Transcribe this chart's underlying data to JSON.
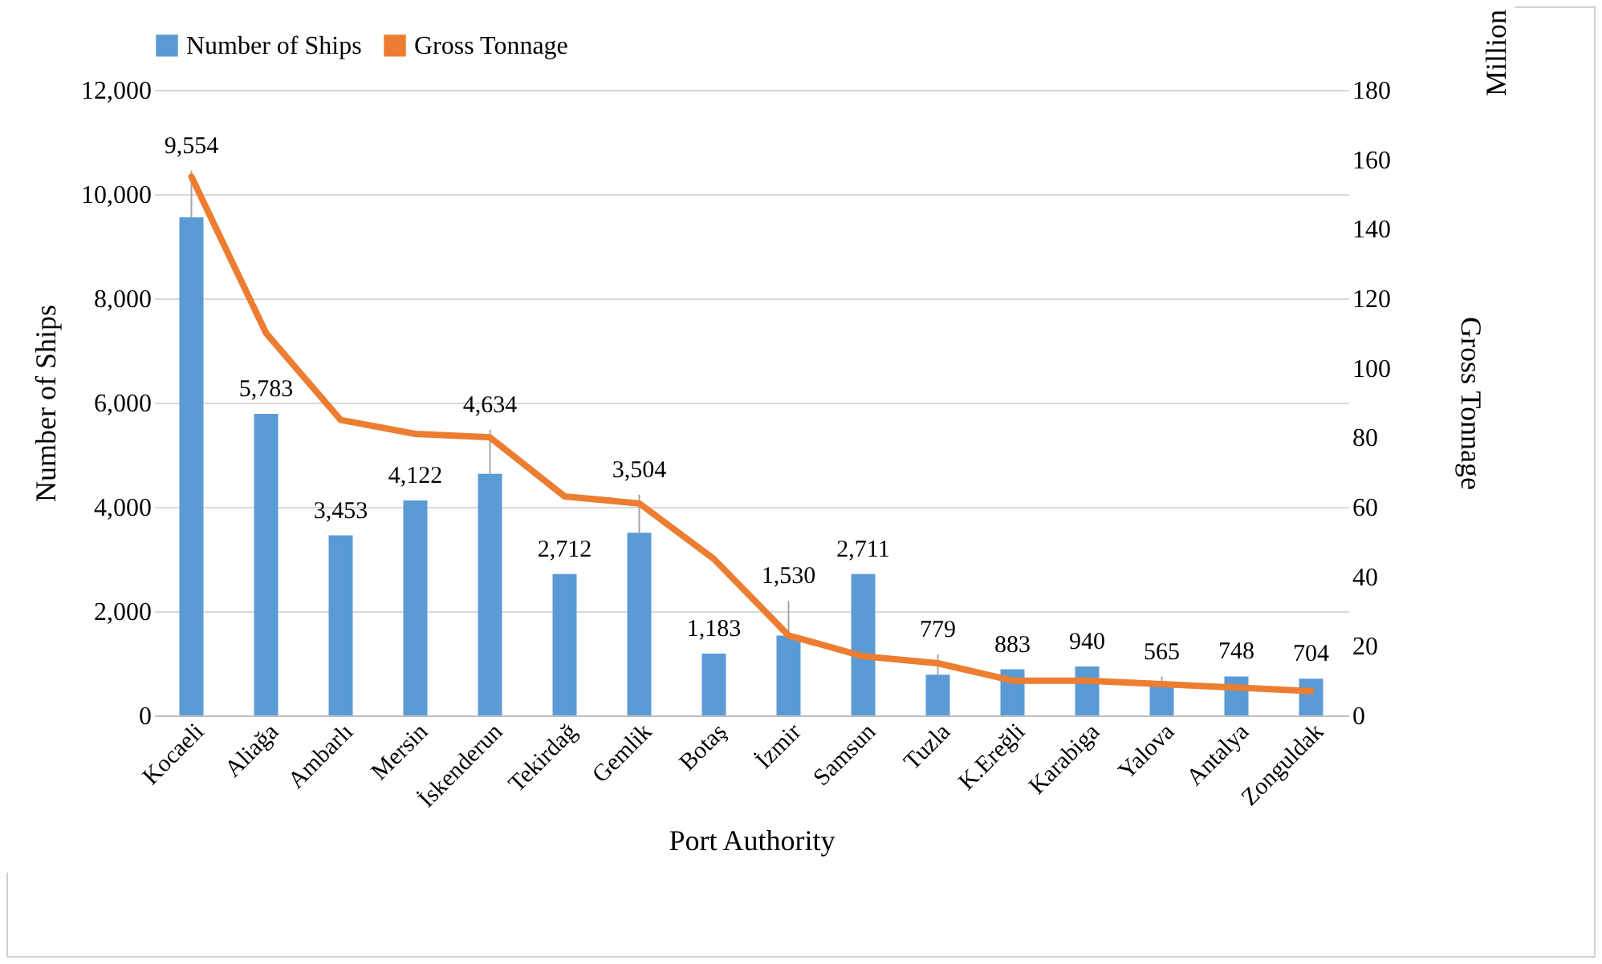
{
  "chart_data": {
    "type": "bar",
    "xlabel": "Port Authority",
    "ylabel": "Number of Ships",
    "y2label": "Gross Tonnage",
    "annotations": [
      "Million"
    ],
    "categories": [
      "Kocaeli",
      "Aliağa",
      "Ambarlı",
      "Mersin",
      "İskenderun",
      "Tekirdağ",
      "Gemlik",
      "Botaş",
      "İzmir",
      "Samsun",
      "Tuzla",
      "K.Ereğli",
      "Karabiga",
      "Yalova",
      "Antalya",
      "Zonguldak"
    ],
    "series": [
      {
        "name": "Number of Ships",
        "color": "#5b9bd5",
        "values": [
          9554,
          5783,
          3453,
          4122,
          4634,
          2712,
          3504,
          1183,
          1530,
          2711,
          779,
          883,
          940,
          565,
          748,
          704
        ],
        "value_labels": [
          "9,554",
          "5,783",
          "3,453",
          "4,122",
          "4,634",
          "2,712",
          "3,504",
          "1,183",
          "1,530",
          "2,711",
          "779",
          "883",
          "940",
          "565",
          "748",
          "704"
        ]
      },
      {
        "name": "Gross Tonnage",
        "type": "line",
        "axis": "y2",
        "color": "#ed7d31",
        "values": [
          155,
          110,
          85,
          81,
          80,
          63,
          61,
          45,
          23,
          17,
          15,
          10,
          10,
          9,
          8,
          7
        ]
      }
    ],
    "ylim": [
      0,
      12000
    ],
    "yticks": [
      {
        "value": 0,
        "label": "0"
      },
      {
        "value": 2000,
        "label": "2,000"
      },
      {
        "value": 4000,
        "label": "4,000"
      },
      {
        "value": 6000,
        "label": "6,000"
      },
      {
        "value": 8000,
        "label": "8,000"
      },
      {
        "value": 10000,
        "label": "10,000"
      },
      {
        "value": 12000,
        "label": "12,000"
      }
    ],
    "y2lim": [
      0,
      180
    ],
    "y2ticks": [
      0,
      20,
      40,
      60,
      80,
      100,
      120,
      140,
      160,
      180
    ],
    "grid": "y",
    "legend": "top",
    "marker": "none",
    "line_style": "solid"
  }
}
